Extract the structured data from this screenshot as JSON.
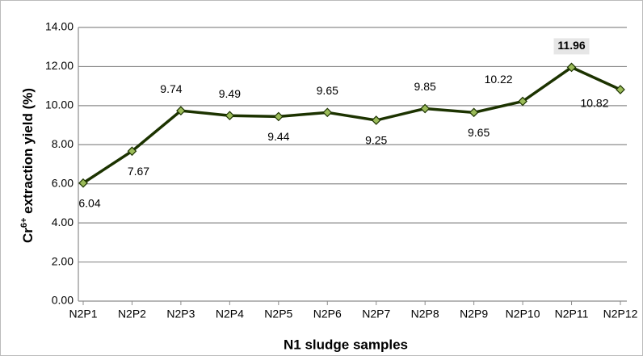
{
  "chart_data": {
    "type": "line",
    "xlabel": "N1 sludge samples",
    "ylabel": {
      "base": "Cr",
      "sup": "6+",
      "rest": " extraction yield (%)"
    },
    "categories": [
      "N2P1",
      "N2P2",
      "N2P3",
      "N2P4",
      "N2P5",
      "N2P6",
      "N2P7",
      "N2P8",
      "N2P9",
      "N2P10",
      "N2P11",
      "N2P12"
    ],
    "series": [
      {
        "color": "#1c3300",
        "marker_color": "#9bbb59",
        "values": [
          6.04,
          7.67,
          9.74,
          9.49,
          9.44,
          9.65,
          9.25,
          9.85,
          9.65,
          10.22,
          11.96,
          10.82
        ]
      }
    ],
    "highlight_index": 10,
    "ylim": [
      0,
      14
    ],
    "yticks": [
      {
        "value": 0,
        "label": "0.00"
      },
      {
        "value": 2,
        "label": "2.00"
      },
      {
        "value": 4,
        "label": "4.00"
      },
      {
        "value": 6,
        "label": "6.00"
      },
      {
        "value": 8,
        "label": "8.00"
      },
      {
        "value": 10,
        "label": "10.00"
      },
      {
        "value": 12,
        "label": "12.00"
      },
      {
        "value": 14,
        "label": "14.00"
      }
    ],
    "grid": true
  }
}
